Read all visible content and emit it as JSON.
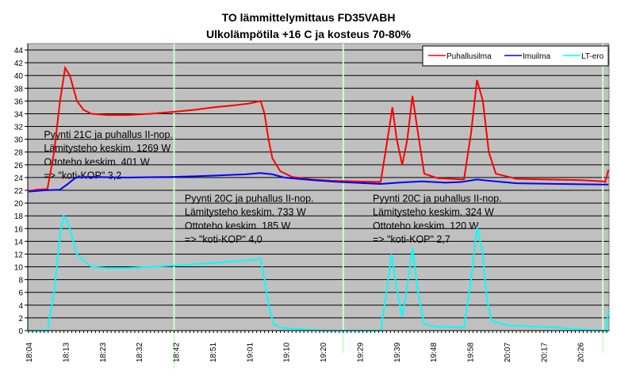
{
  "chart_data": {
    "type": "line",
    "title": [
      "TO lämmittelymittaus FD35VABH",
      "Ulkolämpötila +16 C ja kosteus 70-80%"
    ],
    "xlabel": "",
    "ylabel": "",
    "ylim": [
      0,
      44
    ],
    "y_ticks": [
      0,
      2,
      4,
      6,
      8,
      10,
      12,
      14,
      16,
      18,
      20,
      22,
      24,
      26,
      28,
      30,
      32,
      34,
      36,
      38,
      40,
      42,
      44
    ],
    "x_unit": "minutes since 18:04",
    "xlim": [
      0,
      147.8
    ],
    "x_tick_step": 9.35,
    "x_tick_labels": [
      "18:04",
      "18:13",
      "18:23",
      "18:32",
      "18:42",
      "18:51",
      "19:01",
      "19:10",
      "19:20",
      "19:29",
      "19:39",
      "19:48",
      "19:58",
      "20:07",
      "20:17",
      "20:26"
    ],
    "grid": true,
    "legend_position": "top-right",
    "markers_min": [
      37,
      80,
      146
    ],
    "colors": {
      "background": "#c0c0c0",
      "grid": "#000000",
      "marker": "#ccffcc"
    },
    "series": [
      {
        "name": "Puhallusilma",
        "color": "#ff0000",
        "points": [
          [
            0,
            21.9
          ],
          [
            2,
            22.1
          ],
          [
            4.8,
            22.2
          ],
          [
            6.5,
            28
          ],
          [
            8,
            36
          ],
          [
            9.3,
            41.2
          ],
          [
            10.5,
            40
          ],
          [
            12.3,
            36
          ],
          [
            14,
            34.6
          ],
          [
            16,
            34
          ],
          [
            20,
            33.8
          ],
          [
            25,
            33.8
          ],
          [
            31,
            34
          ],
          [
            37,
            34.3
          ],
          [
            42,
            34.6
          ],
          [
            47,
            35
          ],
          [
            52,
            35.3
          ],
          [
            56,
            35.6
          ],
          [
            59,
            36
          ],
          [
            60,
            34
          ],
          [
            61,
            30
          ],
          [
            62,
            27
          ],
          [
            64,
            25
          ],
          [
            67,
            24.1
          ],
          [
            72,
            23.7
          ],
          [
            77,
            23.5
          ],
          [
            83,
            23.4
          ],
          [
            89.5,
            23.3
          ],
          [
            91,
            29
          ],
          [
            92.5,
            35
          ],
          [
            93.6,
            30
          ],
          [
            95,
            26
          ],
          [
            96.3,
            30
          ],
          [
            97.6,
            36.8
          ],
          [
            99,
            31
          ],
          [
            100.6,
            24.6
          ],
          [
            104,
            23.9
          ],
          [
            110.7,
            23.7
          ],
          [
            112.5,
            31
          ],
          [
            114,
            39.3
          ],
          [
            115.5,
            36
          ],
          [
            117,
            28
          ],
          [
            118.8,
            24.6
          ],
          [
            124,
            23.8
          ],
          [
            132,
            23.7
          ],
          [
            140,
            23.6
          ],
          [
            146,
            23.4
          ],
          [
            146.6,
            23.3
          ],
          [
            147.4,
            25.2
          ]
        ]
      },
      {
        "name": "Imuilma",
        "color": "#0000ff",
        "points": [
          [
            0,
            21.8
          ],
          [
            4,
            22
          ],
          [
            8,
            22.1
          ],
          [
            10,
            23
          ],
          [
            12,
            24
          ],
          [
            16,
            24.1
          ],
          [
            25,
            24
          ],
          [
            37,
            24.1
          ],
          [
            47,
            24.3
          ],
          [
            55,
            24.5
          ],
          [
            59,
            24.7
          ],
          [
            62,
            24.5
          ],
          [
            65,
            24
          ],
          [
            72,
            23.6
          ],
          [
            79,
            23.3
          ],
          [
            89.5,
            23
          ],
          [
            94,
            23.2
          ],
          [
            100,
            23.4
          ],
          [
            106,
            23.2
          ],
          [
            110,
            23.3
          ],
          [
            114,
            23.7
          ],
          [
            117,
            23.5
          ],
          [
            124,
            23.1
          ],
          [
            135,
            23
          ],
          [
            146,
            22.9
          ],
          [
            147.4,
            22.9
          ]
        ]
      },
      {
        "name": "LT-ero",
        "color": "#00ffff",
        "points": [
          [
            0,
            0
          ],
          [
            4.8,
            0
          ],
          [
            6.5,
            6
          ],
          [
            8,
            15
          ],
          [
            8.9,
            18
          ],
          [
            10,
            17
          ],
          [
            12.3,
            12
          ],
          [
            14,
            11
          ],
          [
            16,
            10
          ],
          [
            20,
            9.8
          ],
          [
            25,
            9.8
          ],
          [
            31,
            10
          ],
          [
            37,
            10.2
          ],
          [
            47,
            10.6
          ],
          [
            55,
            11
          ],
          [
            59,
            11.2
          ],
          [
            60,
            8
          ],
          [
            61,
            4
          ],
          [
            62.3,
            1
          ],
          [
            64,
            0.5
          ],
          [
            67,
            0.3
          ],
          [
            75,
            0
          ],
          [
            89.5,
            0
          ],
          [
            91,
            6
          ],
          [
            92.3,
            12
          ],
          [
            93.5,
            7
          ],
          [
            95,
            2.2
          ],
          [
            96.3,
            7
          ],
          [
            97.6,
            13
          ],
          [
            99,
            6
          ],
          [
            100.6,
            1
          ],
          [
            104,
            0.6
          ],
          [
            110.7,
            0.5
          ],
          [
            112.5,
            8
          ],
          [
            114,
            16.2
          ],
          [
            115.5,
            12
          ],
          [
            116.5,
            5
          ],
          [
            117.7,
            1.5
          ],
          [
            122,
            0.8
          ],
          [
            134,
            0.5
          ],
          [
            140,
            0.2
          ],
          [
            146,
            0
          ],
          [
            146.8,
            0
          ],
          [
            147.4,
            3
          ]
        ]
      }
    ],
    "annotations": [
      {
        "lines": [
          "Pyynti 21C ja puhallus II-nop.",
          "Lämitysteho keskim. 1269 W",
          "Ottoteho keskim. 401 W",
          "=> \"koti-KOP\" 3,2"
        ],
        "at_min": 3.9,
        "at_value": 30.2
      },
      {
        "lines": [
          "Pyynti 20C ja puhallus II-nop.",
          "Lämitysteho keskim. 733 W",
          "Ottoteho keskim. 185 W",
          "=> \"koti-KOP\" 4,0"
        ],
        "at_min": 39.7,
        "at_value": 20.2
      },
      {
        "lines": [
          "Pyynti 20C ja puhallus II-nop.",
          "Lämitysteho keskim. 324 W",
          "Ottoteho keskim. 120 W",
          "=> \"koti-KOP\" 2,7"
        ],
        "at_min": 87.5,
        "at_value": 20.2
      }
    ]
  }
}
